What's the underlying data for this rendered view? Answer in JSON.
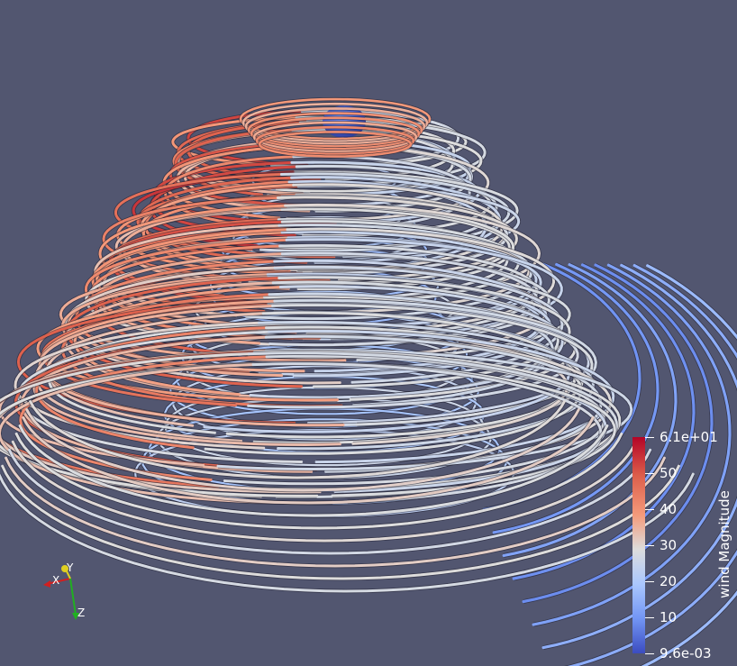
{
  "colorbar": {
    "title": "wind Magnitude",
    "max_label": "6.1e+01",
    "min_label": "9.6e-03",
    "tick_labels": [
      "50",
      "40",
      "30",
      "20",
      "10"
    ],
    "colors": [
      "#b40426",
      "#dd5f4b",
      "#f49a7b",
      "#dddddd",
      "#aac7fd",
      "#7295f4",
      "#3b4cc0"
    ]
  },
  "orientation_axes": {
    "x_label": "X",
    "y_label": "Y",
    "z_label": "Z"
  },
  "scene": {
    "background": "#525670"
  }
}
